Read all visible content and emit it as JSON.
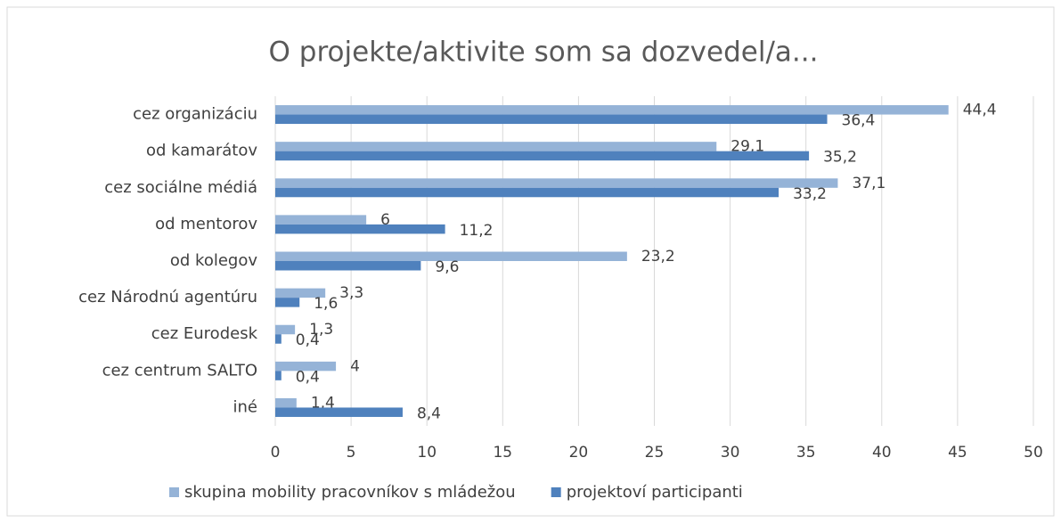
{
  "chart_data": {
    "type": "bar",
    "orientation": "horizontal",
    "title": "O projekte/aktivite som sa dozvedel/a...",
    "categories": [
      "cez organizáciu",
      "od kamarátov",
      "cez sociálne médiá",
      "od mentorov",
      "od kolegov",
      "cez Národnú agentúru",
      "cez Eurodesk",
      "cez centrum SALTO",
      "iné"
    ],
    "series": [
      {
        "name": "skupina mobility pracovníkov s mládežou",
        "color": "#95b3d7",
        "values": [
          44.4,
          29.1,
          37.1,
          6,
          23.2,
          3.3,
          1.3,
          4,
          1.4
        ],
        "value_labels": [
          "44,4",
          "29,1",
          "37,1",
          "6",
          "23,2",
          "3,3",
          "1,3",
          "4",
          "1,4"
        ]
      },
      {
        "name": "projektoví participanti",
        "color": "#4f81bd",
        "values": [
          36.4,
          35.2,
          33.2,
          11.2,
          9.6,
          1.6,
          0.4,
          0.4,
          8.4
        ],
        "value_labels": [
          "36,4",
          "35,2",
          "33,2",
          "11,2",
          "9,6",
          "1,6",
          "0,4",
          "0,4",
          "8,4"
        ]
      }
    ],
    "xlim": [
      0,
      50
    ],
    "xticks": [
      0,
      5,
      10,
      15,
      20,
      25,
      30,
      35,
      40,
      45,
      50
    ],
    "grid": true,
    "legend": "bottom"
  }
}
